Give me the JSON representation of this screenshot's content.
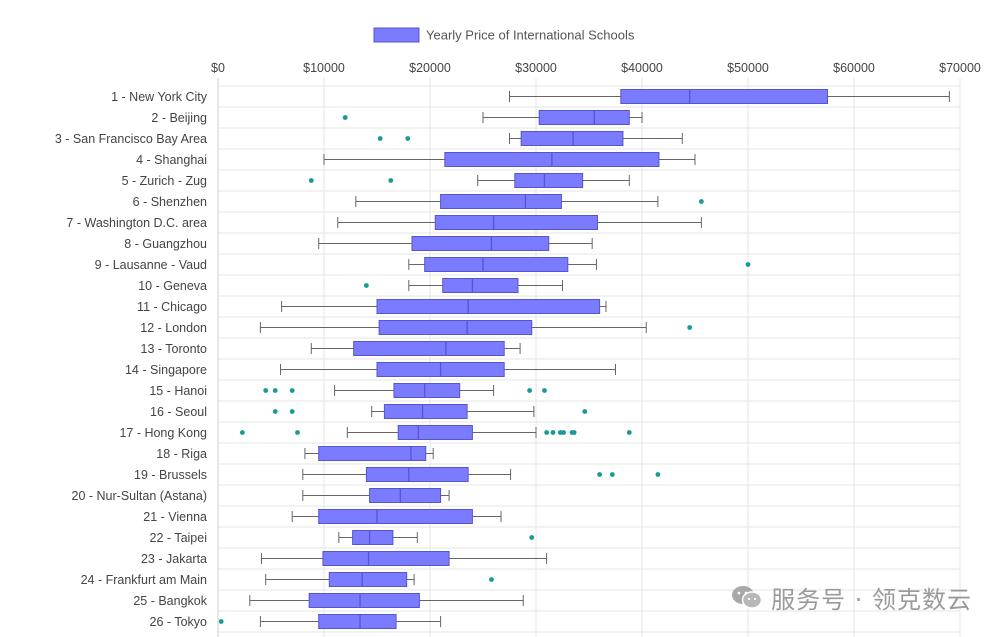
{
  "chart_data": {
    "type": "boxplot",
    "orientation": "horizontal",
    "title": "",
    "legend": {
      "label": "Yearly Price of International Schools",
      "color": "#7b7bff",
      "border": "#5555cc",
      "position": "top-center"
    },
    "xlim": [
      0,
      70000
    ],
    "x_ticks": [
      0,
      10000,
      20000,
      30000,
      40000,
      50000,
      60000,
      70000
    ],
    "x_tick_labels": [
      "$0",
      "$10000",
      "$20000",
      "$30000",
      "$40000",
      "$50000",
      "$60000",
      "$70000"
    ],
    "colors": {
      "box_fill": "#7b7bff",
      "box_stroke": "#5555cc",
      "whisker": "#666666",
      "outlier": "#1a9a95",
      "grid": "#e6e6e6"
    },
    "categories": [
      "1 - New York City",
      "2 - Beijing",
      "3 - San Francisco Bay Area",
      "4 - Shanghai",
      "5 - Zurich - Zug",
      "6 - Shenzhen",
      "7 - Washington D.C. area",
      "8 - Guangzhou",
      "9 - Lausanne - Vaud",
      "10 - Geneva",
      "11 - Chicago",
      "12 - London",
      "13 - Toronto",
      "14 - Singapore",
      "15 - Hanoi",
      "16 - Seoul",
      "17 - Hong Kong",
      "18 - Riga",
      "19 - Brussels",
      "20 - Nur-Sultan (Astana)",
      "21 - Vienna",
      "22 - Taipei",
      "23 - Jakarta",
      "24 - Frankfurt am Main",
      "25 - Bangkok",
      "26 - Tokyo"
    ],
    "boxes": [
      {
        "min": 27500,
        "q1": 38000,
        "median": 44500,
        "q3": 57500,
        "max": 69000,
        "outliers": []
      },
      {
        "min": 25000,
        "q1": 30300,
        "median": 35500,
        "q3": 38800,
        "max": 40000,
        "outliers": [
          12000
        ]
      },
      {
        "min": 27500,
        "q1": 28600,
        "median": 33500,
        "q3": 38200,
        "max": 43800,
        "outliers": [
          15300,
          17900
        ]
      },
      {
        "min": 10000,
        "q1": 21400,
        "median": 31500,
        "q3": 41600,
        "max": 45000,
        "outliers": []
      },
      {
        "min": 24500,
        "q1": 28000,
        "median": 30800,
        "q3": 34400,
        "max": 38800,
        "outliers": [
          8800,
          16300
        ]
      },
      {
        "min": 13000,
        "q1": 21000,
        "median": 29000,
        "q3": 32400,
        "max": 41500,
        "outliers": [
          45600
        ]
      },
      {
        "min": 11300,
        "q1": 20500,
        "median": 26000,
        "q3": 35800,
        "max": 45600,
        "outliers": []
      },
      {
        "min": 9500,
        "q1": 18300,
        "median": 25800,
        "q3": 31200,
        "max": 35300,
        "outliers": []
      },
      {
        "min": 18000,
        "q1": 19500,
        "median": 25000,
        "q3": 33000,
        "max": 35700,
        "outliers": [
          50000
        ]
      },
      {
        "min": 18000,
        "q1": 21200,
        "median": 24000,
        "q3": 28300,
        "max": 32500,
        "outliers": [
          14000
        ]
      },
      {
        "min": 6000,
        "q1": 15000,
        "median": 23600,
        "q3": 36000,
        "max": 36600,
        "outliers": []
      },
      {
        "min": 4000,
        "q1": 15200,
        "median": 23500,
        "q3": 29600,
        "max": 40400,
        "outliers": [
          44500
        ]
      },
      {
        "min": 8800,
        "q1": 12800,
        "median": 21500,
        "q3": 27000,
        "max": 28500,
        "outliers": []
      },
      {
        "min": 5900,
        "q1": 15000,
        "median": 21000,
        "q3": 27000,
        "max": 37500,
        "outliers": []
      },
      {
        "min": 11000,
        "q1": 16600,
        "median": 19500,
        "q3": 22800,
        "max": 26000,
        "outliers": [
          4500,
          5400,
          7000,
          29400,
          30800
        ]
      },
      {
        "min": 14500,
        "q1": 15700,
        "median": 19300,
        "q3": 23500,
        "max": 29800,
        "outliers": [
          5400,
          7000,
          34600
        ]
      },
      {
        "min": 12200,
        "q1": 17000,
        "median": 18900,
        "q3": 24000,
        "max": 30000,
        "outliers": [
          2300,
          7500,
          31000,
          31600,
          32300,
          32600,
          33400,
          33600,
          38800
        ]
      },
      {
        "min": 8200,
        "q1": 9500,
        "median": 18200,
        "q3": 19600,
        "max": 20300,
        "outliers": []
      },
      {
        "min": 8000,
        "q1": 14000,
        "median": 18000,
        "q3": 23600,
        "max": 27600,
        "outliers": [
          36000,
          37200,
          41500
        ]
      },
      {
        "min": 8000,
        "q1": 14300,
        "median": 17200,
        "q3": 21000,
        "max": 21800,
        "outliers": []
      },
      {
        "min": 7000,
        "q1": 9500,
        "median": 15000,
        "q3": 24000,
        "max": 26700,
        "outliers": []
      },
      {
        "min": 11400,
        "q1": 12700,
        "median": 14300,
        "q3": 16500,
        "max": 18800,
        "outliers": [
          29600
        ]
      },
      {
        "min": 4100,
        "q1": 9900,
        "median": 14200,
        "q3": 21800,
        "max": 31000,
        "outliers": []
      },
      {
        "min": 4500,
        "q1": 10500,
        "median": 13600,
        "q3": 17800,
        "max": 18500,
        "outliers": [
          25800
        ]
      },
      {
        "min": 3000,
        "q1": 8600,
        "median": 13400,
        "q3": 19000,
        "max": 28800,
        "outliers": []
      },
      {
        "min": 4000,
        "q1": 9500,
        "median": 13400,
        "q3": 16800,
        "max": 21000,
        "outliers": [
          300
        ]
      }
    ]
  },
  "watermark": {
    "icon": "wechat-icon",
    "text": "服务号 · 领克数云"
  }
}
